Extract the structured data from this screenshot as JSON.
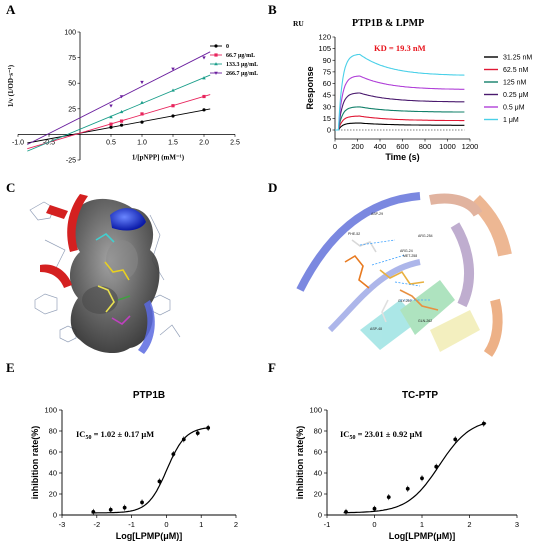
{
  "panels": {
    "A": {
      "label": "A"
    },
    "B": {
      "label": "B"
    },
    "C": {
      "label": "C"
    },
    "D": {
      "label": "D"
    },
    "E": {
      "label": "E"
    },
    "F": {
      "label": "F"
    }
  },
  "chart_data": [
    {
      "panel": "A",
      "type": "line",
      "ylabel": "1/v (1/OD·s⁻¹)",
      "xlabel": "1/[pNPP] (mM⁻¹)",
      "xlim": [
        -1.0,
        2.5
      ],
      "ylim": [
        -25,
        100
      ],
      "x_ticks": [
        "-1.0",
        "-0.5",
        "0.5",
        "1.0",
        "1.5",
        "2.0",
        "2.5"
      ],
      "y_ticks": [
        "-25",
        "25",
        "50",
        "75",
        "100"
      ],
      "legend_position": "right",
      "series": [
        {
          "name": "0",
          "color": "#000000",
          "marker": "circle",
          "x": [
            0.5,
            0.67,
            1.0,
            1.5,
            2.0
          ],
          "y": [
            7,
            9,
            12,
            18,
            24
          ]
        },
        {
          "name": "66.7 μg/mL",
          "color": "#e8245c",
          "marker": "square",
          "x": [
            0.5,
            0.67,
            1.0,
            1.5,
            2.0
          ],
          "y": [
            10,
            13,
            20,
            28,
            37
          ]
        },
        {
          "name": "133.3 μg/mL",
          "color": "#1a9e8a",
          "marker": "triangle",
          "x": [
            0.5,
            0.67,
            1.0,
            1.5,
            2.0
          ],
          "y": [
            17,
            22,
            31,
            43,
            55
          ]
        },
        {
          "name": "266.7 μg/mL",
          "color": "#6a1e9e",
          "marker": "inverted-triangle",
          "x": [
            0.5,
            0.67,
            1.0,
            1.5,
            2.0
          ],
          "y": [
            28,
            37,
            51,
            64,
            75
          ]
        }
      ]
    },
    {
      "panel": "B",
      "type": "line",
      "title": "PTP1B & LPMP",
      "unit_label": "RU",
      "annotation": "KD = 19.3 nM",
      "xlabel": "Time (s)",
      "ylabel": "Response",
      "xlim": [
        0,
        1200
      ],
      "ylim": [
        0,
        120
      ],
      "x_ticks": [
        "0",
        "200",
        "400",
        "600",
        "800",
        "1000",
        "1200"
      ],
      "y_ticks": [
        "0",
        "15",
        "30",
        "45",
        "60",
        "75",
        "90",
        "105",
        "120"
      ],
      "legend_position": "right",
      "series": [
        {
          "name": "31.25 nM",
          "color": "#000000",
          "plateau": 9,
          "end": 6
        },
        {
          "name": "62.5 nM",
          "color": "#e01835",
          "plateau": 18,
          "end": 12
        },
        {
          "name": "125 nM",
          "color": "#12806a",
          "plateau": 30,
          "end": 23
        },
        {
          "name": "0.25 μM",
          "color": "#4a1a6e",
          "plateau": 48,
          "end": 36
        },
        {
          "name": "0.5 μM",
          "color": "#b040d8",
          "plateau": 70,
          "end": 52
        },
        {
          "name": "1 μM",
          "color": "#4ad0e8",
          "plateau": 98,
          "end": 70
        }
      ]
    },
    {
      "panel": "E",
      "type": "scatter",
      "title": "PTP1B",
      "annotation": "IC50 = 1.02 ± 0.17 μM",
      "xlabel": "Log[LPMP(μM)]",
      "ylabel": "inhibition rate(%)",
      "xlim": [
        -3,
        2
      ],
      "ylim": [
        0,
        100
      ],
      "x_ticks": [
        "-3",
        "-2",
        "-1",
        "0",
        "1",
        "2"
      ],
      "y_ticks": [
        "0",
        "20",
        "40",
        "60",
        "80",
        "100"
      ],
      "points": {
        "x": [
          -2.1,
          -1.6,
          -1.2,
          -0.7,
          -0.2,
          0.2,
          0.5,
          0.9,
          1.2
        ],
        "y": [
          3,
          5,
          7,
          12,
          32,
          58,
          72,
          78,
          83
        ]
      },
      "fit": {
        "bottom": 2,
        "top": 84,
        "logIC50": 0.01,
        "hill": 1.6
      }
    },
    {
      "panel": "F",
      "type": "scatter",
      "title": "TC-PTP",
      "annotation": "IC50 = 23.01 ± 0.92 μM",
      "xlabel": "Log[LPMP(μM)]",
      "ylabel": "inhibition rate(%)",
      "xlim": [
        -1,
        3
      ],
      "ylim": [
        0,
        100
      ],
      "x_ticks": [
        "-1",
        "0",
        "1",
        "2",
        "3"
      ],
      "y_ticks": [
        "0",
        "20",
        "40",
        "60",
        "80",
        "100"
      ],
      "points": {
        "x": [
          -0.6,
          0,
          0.3,
          0.7,
          1.0,
          1.3,
          1.7,
          2.3
        ],
        "y": [
          3,
          6,
          17,
          25,
          35,
          46,
          72,
          87
        ]
      },
      "fit": {
        "bottom": 2,
        "top": 92,
        "logIC50": 1.36,
        "hill": 1.3
      }
    }
  ],
  "panelD_residues": [
    "ASP-29",
    "PHE-52",
    "ARG-24",
    "ARG-254",
    "MET-258",
    "GLY-259",
    "GLN-262",
    "ASP-48"
  ],
  "colors": {
    "ribbon_red": "#d42020",
    "ribbon_blue": "#1a2ecc",
    "surface_gray": "#6a6a6a",
    "protein_blue": "#6a7ad8",
    "protein_orange": "#e8a070"
  }
}
